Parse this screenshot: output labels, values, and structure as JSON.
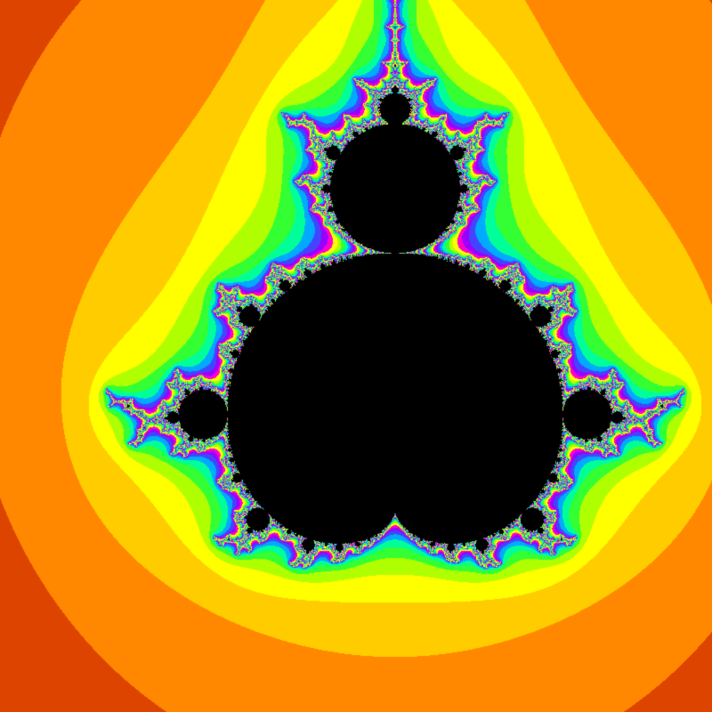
{
  "scene": {
    "subject": "mandelbrot-set-fractal-multibrot",
    "background_color": "#ffffff",
    "grid_line_color": "#c8c8c8",
    "inside_color": "#000000",
    "band_colors": [
      "#ff0000",
      "#dd4400",
      "#ff8800",
      "#ffcc00",
      "#ffff00",
      "#b0ff00",
      "#33ff33",
      "#00ff99",
      "#00aaff",
      "#4444ff",
      "#9900ff",
      "#ff00cc"
    ]
  }
}
